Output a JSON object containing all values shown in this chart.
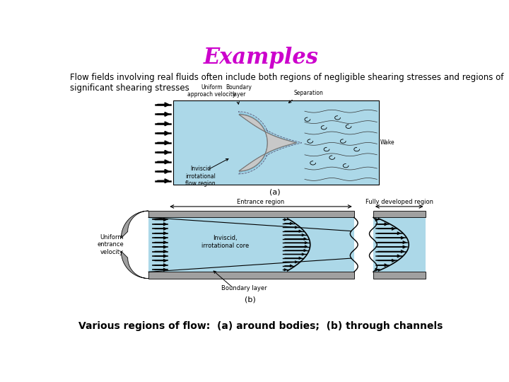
{
  "title": "Examples",
  "title_color": "#CC00CC",
  "title_fontsize": 22,
  "body_text": "Flow fields involving real fluids often include both regions of negligible shearing stresses and regions of\nsignificant shearing stresses",
  "body_fontsize": 8.5,
  "caption": "Various regions of flow:  (a) around bodies;  (b) through channels",
  "caption_fontsize": 10,
  "bg_color": "#FFFFFF",
  "light_blue": "#ACD8E8",
  "gray_body": "#C8C8C8",
  "dark_gray": "#A0A0A0",
  "label_a": "(a)",
  "label_b": "(b)"
}
